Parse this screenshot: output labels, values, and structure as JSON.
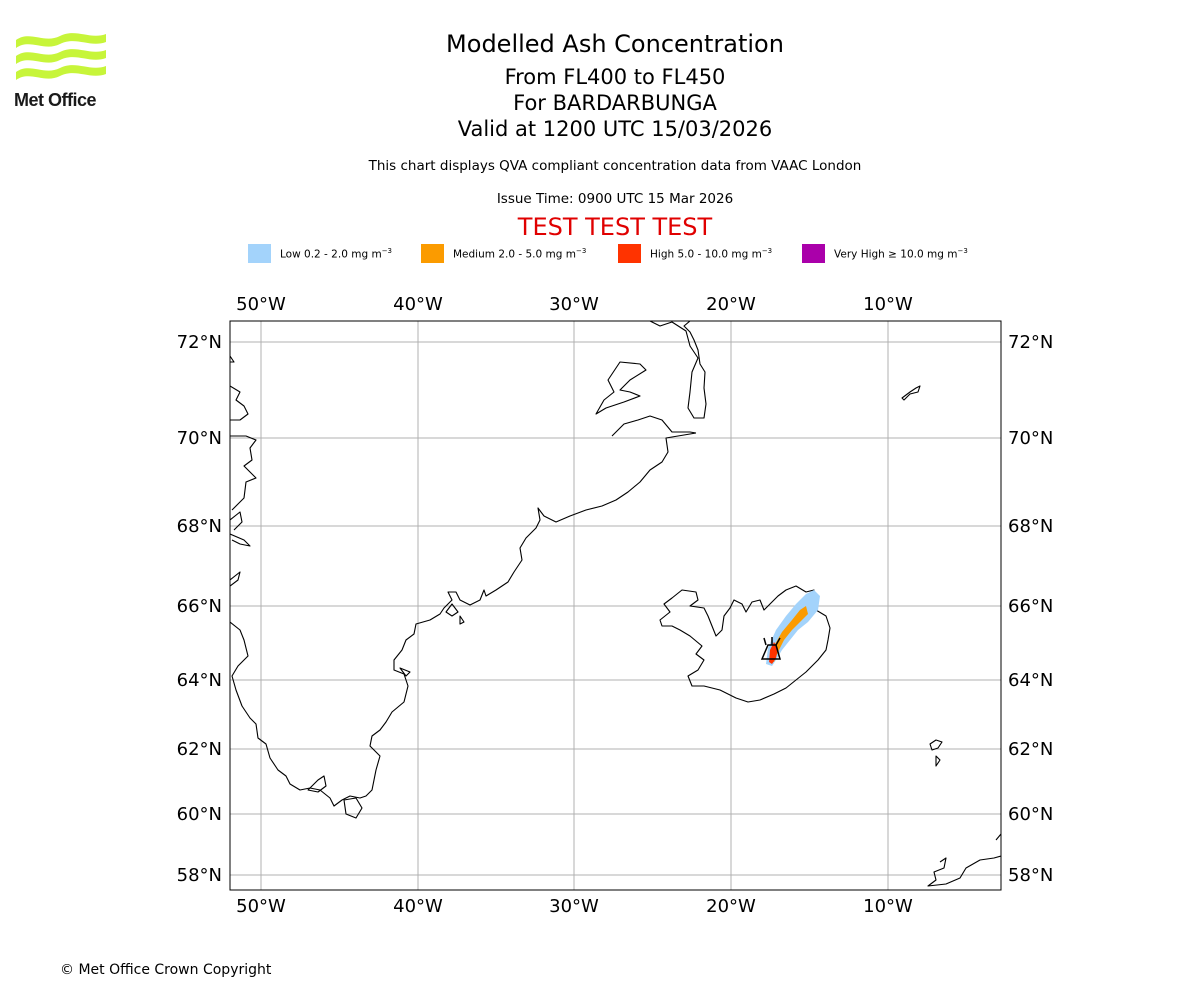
{
  "header": {
    "logo_text": "Met Office",
    "title": "Modelled Ash Concentration",
    "subtitle_levels": "From FL400 to FL450",
    "subtitle_volcano": "For BARDARBUNGA",
    "subtitle_valid": "Valid at 1200 UTC 15/03/2026",
    "note": "This chart displays QVA compliant concentration data from VAAC London",
    "issue_time": "Issue Time: 0900 UTC 15 Mar 2026",
    "test_banner": "TEST TEST TEST"
  },
  "legend": [
    {
      "label": "Low 0.2 - 2.0 mg m",
      "unit_sup": "−3",
      "color": "#a3d3fb"
    },
    {
      "label": "Medium 2.0 - 5.0 mg m",
      "unit_sup": "−3",
      "color": "#fb9b00"
    },
    {
      "label": "High 5.0 - 10.0 mg m",
      "unit_sup": "−3",
      "color": "#ff3300"
    },
    {
      "label": "Very High  ≥  10.0 mg m",
      "unit_sup": "−3",
      "color": "#aa00aa"
    }
  ],
  "map": {
    "lon_labels": [
      "50°W",
      "40°W",
      "30°W",
      "20°W",
      "10°W"
    ],
    "lat_labels": [
      "72°N",
      "70°N",
      "68°N",
      "66°N",
      "64°N",
      "62°N",
      "60°N",
      "58°N"
    ],
    "volcano_name": "BARDARBUNGA",
    "colors": {
      "coast": "#000000",
      "grid": "#b0b0b0",
      "low": "#a3d3fb",
      "medium": "#fb9b00",
      "high": "#ff3300"
    }
  },
  "footer": {
    "copyright": "© Met Office Crown Copyright"
  }
}
